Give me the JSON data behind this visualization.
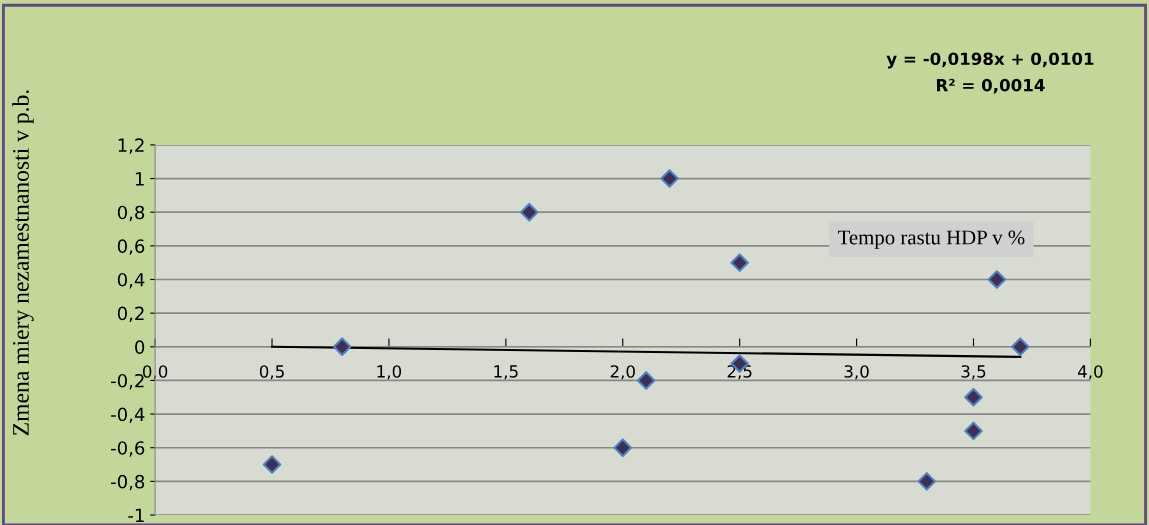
{
  "chart_data": {
    "type": "scatter",
    "xlabel": "Tempo rastu HDP v %",
    "ylabel": "Zmena miery nezamestnanosti v p.b.",
    "annotations": [
      "y = -0,0198x + 0,0101",
      "R² = 0,0014"
    ],
    "series": [
      {
        "color": "#3f2f55",
        "x": [
          0.5,
          0.8,
          1.6,
          2.0,
          2.1,
          2.2,
          2.5,
          2.5,
          3.3,
          3.5,
          3.5,
          3.6,
          3.7
        ],
        "values": [
          -0.7,
          0,
          0.8,
          -0.6,
          -0.2,
          1.0,
          0.5,
          -0.1,
          -0.8,
          -0.3,
          -0.5,
          0.4,
          0
        ],
        "marker": "diamond"
      },
      {
        "type": "line",
        "color": "#000000",
        "x": [
          0.5,
          3.7
        ],
        "values": [
          0.0,
          -0.06
        ],
        "marker": "none",
        "line_style": "solid"
      }
    ],
    "xlim": [
      0,
      4
    ],
    "xticks": [
      {
        "value": 0,
        "label": "0,0"
      },
      {
        "value": 0.5,
        "label": "0,5"
      },
      {
        "value": 1,
        "label": "1,0"
      },
      {
        "value": 1.5,
        "label": "1,5"
      },
      {
        "value": 2,
        "label": "2,0"
      },
      {
        "value": 2.5,
        "label": "2,5"
      },
      {
        "value": 3,
        "label": "3,0"
      },
      {
        "value": 3.5,
        "label": "3,5"
      },
      {
        "value": 4,
        "label": "4,0"
      }
    ],
    "ylim": [
      -1,
      1.2
    ],
    "yticks": [
      {
        "value": -1,
        "label": "-1"
      },
      {
        "value": -0.8,
        "label": "-0,8"
      },
      {
        "value": -0.6,
        "label": "-0,6"
      },
      {
        "value": -0.4,
        "label": "-0,4"
      },
      {
        "value": -0.2,
        "label": "-0,2"
      },
      {
        "value": 0,
        "label": "0"
      },
      {
        "value": 0.2,
        "label": "0,2"
      },
      {
        "value": 0.4,
        "label": "0,4"
      },
      {
        "value": 0.6,
        "label": "0,6"
      },
      {
        "value": 0.8,
        "label": "0,8"
      },
      {
        "value": 1,
        "label": "1"
      },
      {
        "value": 1.2,
        "label": "1,2"
      }
    ],
    "grid": "y",
    "legend": false
  }
}
